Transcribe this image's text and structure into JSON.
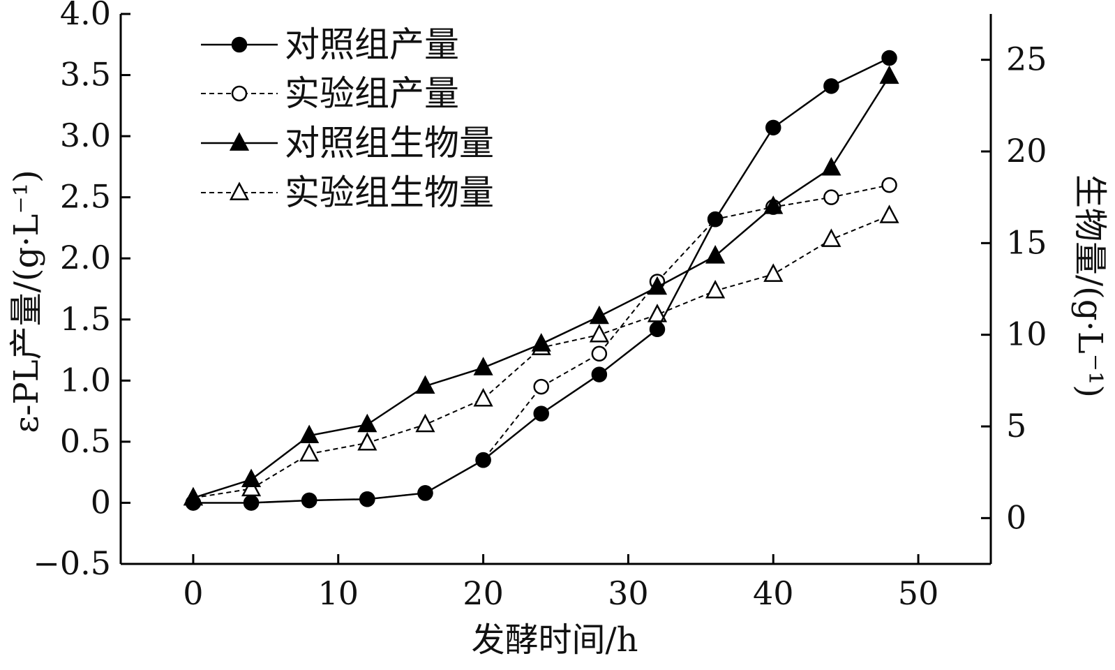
{
  "chart_data": {
    "type": "line",
    "title": "",
    "xlabel": "发酵时间/h",
    "ylabel_left": "ε-PL产量/(g·L⁻¹)",
    "ylabel_right": "生物量/(g·L⁻¹)",
    "xlim": [
      -5,
      55
    ],
    "ylim_left": [
      -0.5,
      4.0
    ],
    "ylim_right": [
      -2.5,
      27.5
    ],
    "x_ticks": [
      "0",
      "10",
      "20",
      "30",
      "40",
      "50"
    ],
    "y_left_ticks": [
      "−0.5",
      "0",
      "0.5",
      "1.0",
      "1.5",
      "2.0",
      "2.5",
      "3.0",
      "3.5",
      "4.0"
    ],
    "y_right_ticks": [
      "0",
      "5",
      "10",
      "15",
      "20",
      "25"
    ],
    "grid": false,
    "legend_position": "top-left",
    "x": [
      0,
      4,
      8,
      12,
      16,
      20,
      24,
      28,
      32,
      36,
      40,
      44,
      48
    ],
    "series": [
      {
        "name": "对照组产量",
        "axis": "left",
        "marker": "filled-circle",
        "line": "solid",
        "values": [
          0,
          0,
          0.02,
          0.03,
          0.08,
          0.35,
          0.73,
          1.05,
          1.42,
          2.32,
          3.07,
          3.41,
          3.64
        ]
      },
      {
        "name": "实验组产量",
        "axis": "left",
        "marker": "open-circle",
        "line": "dashed",
        "values": [
          0,
          0,
          0.02,
          0.03,
          0.08,
          0.35,
          0.95,
          1.22,
          1.81,
          2.32,
          2.42,
          2.5,
          2.6
        ]
      },
      {
        "name": "对照组生物量",
        "axis": "right",
        "marker": "filled-triangle",
        "line": "solid",
        "values": [
          1.1,
          2.1,
          4.5,
          5.1,
          7.2,
          8.2,
          9.5,
          11.0,
          12.6,
          14.3,
          17.0,
          19.1,
          24.1
        ]
      },
      {
        "name": "实验组生物量",
        "axis": "right",
        "marker": "open-triangle",
        "line": "dashed",
        "values": [
          1.1,
          1.6,
          3.5,
          4.1,
          5.1,
          6.5,
          9.3,
          10.0,
          11.1,
          12.4,
          13.3,
          15.2,
          16.5
        ]
      }
    ]
  }
}
